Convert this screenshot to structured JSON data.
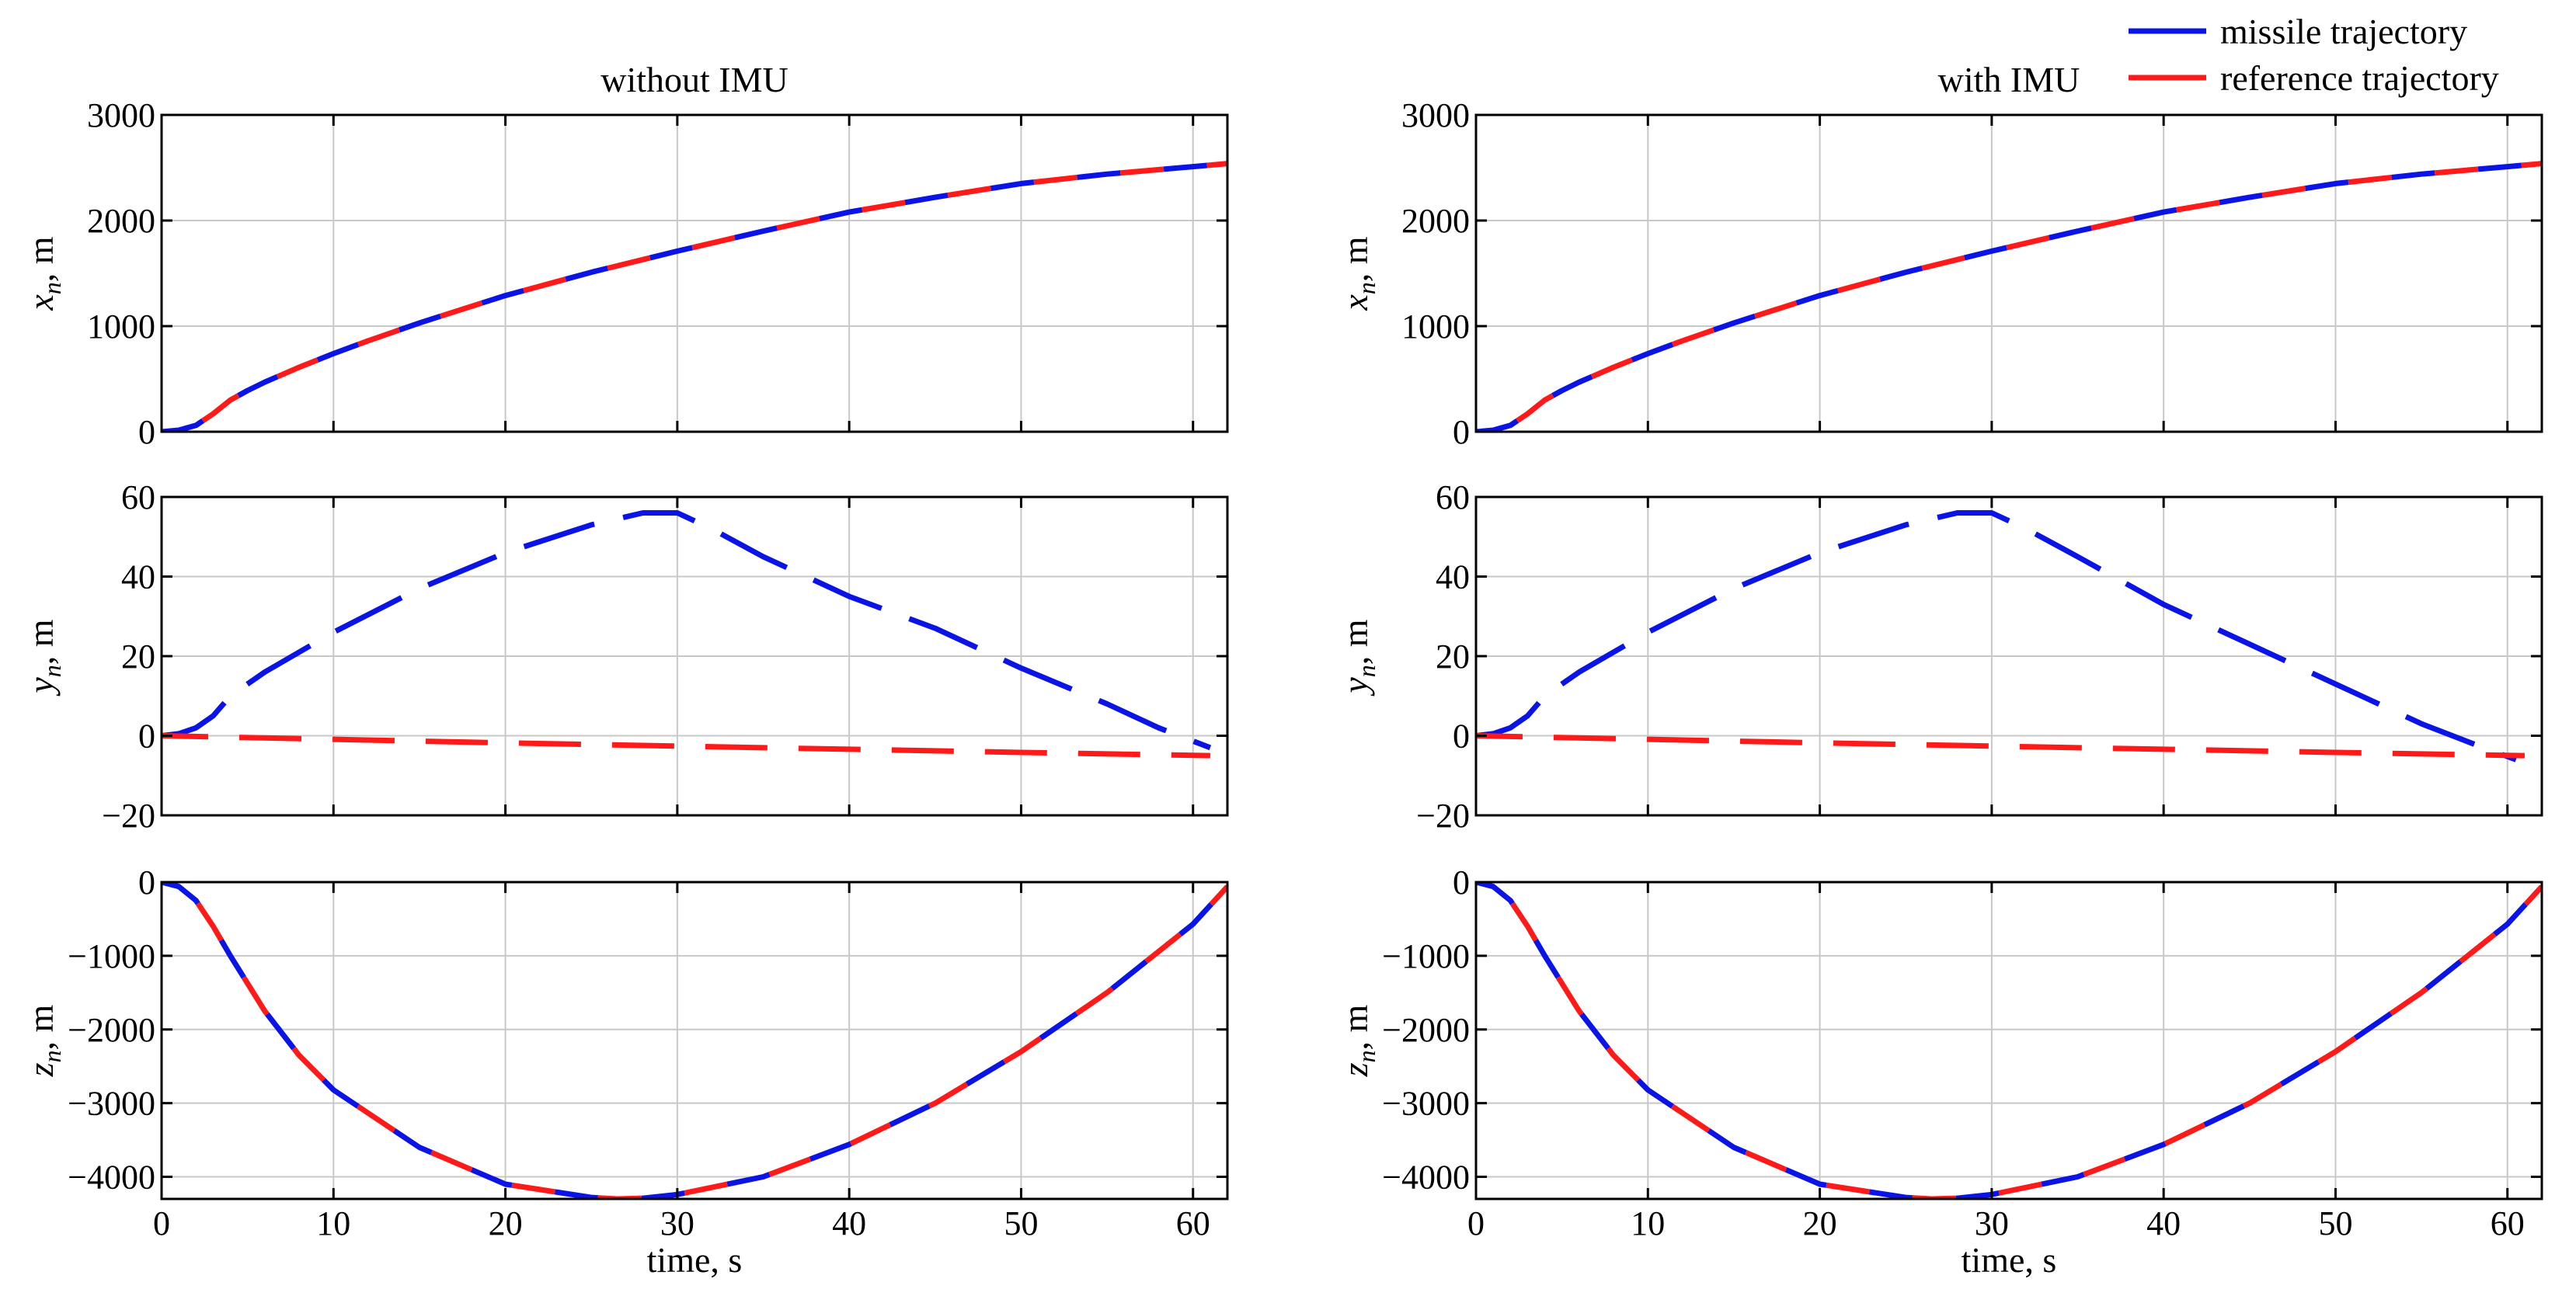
{
  "legend": {
    "position": "top-right",
    "entries": [
      {
        "name": "missile trajectory",
        "color": "#0a14e6"
      },
      {
        "name": "reference trajectory",
        "color": "#ff1a1a"
      }
    ]
  },
  "chart_data": [
    {
      "type": "line",
      "column": "left",
      "row": "x",
      "title": "without IMU",
      "xlabel": "",
      "ylabel": "x_n, m",
      "ylabel_var": "x",
      "ylabel_sub": "n",
      "ylabel_unit": ", m",
      "xlim": [
        0,
        62
      ],
      "ylim": [
        0,
        3000
      ],
      "xticks": [
        0,
        10,
        20,
        30,
        40,
        50,
        60
      ],
      "yticks": [
        0,
        1000,
        2000,
        3000
      ],
      "ytick_labels": [
        "0",
        "1000",
        "2000",
        "3000"
      ],
      "grid": true,
      "show_xtick_labels": false,
      "series": [
        {
          "name": "missile trajectory",
          "style": "blue-dash",
          "x": [
            0,
            1,
            2,
            3,
            4,
            5,
            6,
            8,
            10,
            12,
            15,
            20,
            25,
            30,
            35,
            40,
            45,
            50,
            55,
            60,
            62
          ],
          "y": [
            0,
            15,
            60,
            170,
            300,
            390,
            470,
            610,
            740,
            860,
            1030,
            1290,
            1510,
            1710,
            1900,
            2080,
            2220,
            2350,
            2440,
            2510,
            2540
          ]
        },
        {
          "name": "reference trajectory",
          "style": "red-dash",
          "x": [
            0,
            1,
            2,
            3,
            4,
            5,
            6,
            8,
            10,
            12,
            15,
            20,
            25,
            30,
            35,
            40,
            45,
            50,
            55,
            60,
            62
          ],
          "y": [
            0,
            15,
            60,
            170,
            300,
            390,
            470,
            610,
            740,
            860,
            1030,
            1290,
            1510,
            1710,
            1900,
            2080,
            2220,
            2350,
            2440,
            2510,
            2540
          ]
        }
      ]
    },
    {
      "type": "line",
      "column": "left",
      "row": "y",
      "title": "",
      "xlabel": "",
      "ylabel": "y_n, m",
      "ylabel_var": "y",
      "ylabel_sub": "n",
      "ylabel_unit": ", m",
      "xlim": [
        0,
        62
      ],
      "ylim": [
        -20,
        60
      ],
      "xticks": [
        0,
        10,
        20,
        30,
        40,
        50,
        60
      ],
      "yticks": [
        -20,
        0,
        20,
        40,
        60
      ],
      "ytick_labels": [
        "−20",
        "0",
        "20",
        "40",
        "60"
      ],
      "grid": true,
      "show_xtick_labels": false,
      "series": [
        {
          "name": "missile trajectory",
          "style": "blue-long-dash",
          "x": [
            0,
            1,
            2,
            3,
            4,
            6,
            8,
            10,
            15,
            20,
            25,
            28,
            30,
            32,
            35,
            40,
            45,
            50,
            55,
            58,
            61
          ],
          "y": [
            0,
            0.5,
            2,
            5,
            10,
            16,
            21,
            26,
            37,
            46,
            53,
            56,
            56,
            52,
            45,
            35,
            27,
            17,
            8,
            2,
            -3
          ]
        },
        {
          "name": "reference trajectory",
          "style": "red-long-dash",
          "x": [
            0,
            10,
            20,
            30,
            40,
            50,
            61
          ],
          "y": [
            0,
            -0.9,
            -1.8,
            -2.6,
            -3.4,
            -4.2,
            -5
          ]
        }
      ]
    },
    {
      "type": "line",
      "column": "left",
      "row": "z",
      "title": "",
      "xlabel": "time, s",
      "ylabel": "z_n, m",
      "ylabel_var": "z",
      "ylabel_sub": "n",
      "ylabel_unit": ", m",
      "xlim": [
        0,
        62
      ],
      "ylim": [
        -4300,
        0
      ],
      "xticks": [
        0,
        10,
        20,
        30,
        40,
        50,
        60
      ],
      "yticks": [
        -4000,
        -3000,
        -2000,
        -1000,
        0
      ],
      "ytick_labels": [
        "−4000",
        "−3000",
        "−2000",
        "−1000",
        "0"
      ],
      "grid": true,
      "show_xtick_labels": true,
      "xtick_labels": [
        "0",
        "10",
        "20",
        "30",
        "40",
        "50",
        "60"
      ],
      "series": [
        {
          "name": "missile trajectory",
          "style": "blue-dash",
          "x": [
            0,
            1,
            2,
            3,
            4,
            6,
            8,
            10,
            15,
            20,
            25,
            26.5,
            28,
            30,
            35,
            40,
            45,
            50,
            55,
            60,
            62
          ],
          "y": [
            0,
            -60,
            -250,
            -600,
            -1000,
            -1750,
            -2350,
            -2820,
            -3600,
            -4100,
            -4280,
            -4300,
            -4290,
            -4240,
            -4000,
            -3560,
            -3000,
            -2300,
            -1500,
            -570,
            -60
          ]
        },
        {
          "name": "reference trajectory",
          "style": "red-dash",
          "x": [
            0,
            1,
            2,
            3,
            4,
            6,
            8,
            10,
            15,
            20,
            25,
            26.5,
            28,
            30,
            35,
            40,
            45,
            50,
            55,
            60,
            62
          ],
          "y": [
            0,
            -60,
            -250,
            -600,
            -1000,
            -1750,
            -2350,
            -2820,
            -3600,
            -4100,
            -4280,
            -4300,
            -4290,
            -4240,
            -4000,
            -3560,
            -3000,
            -2300,
            -1500,
            -570,
            -60
          ]
        }
      ]
    },
    {
      "type": "line",
      "column": "right",
      "row": "x",
      "title": "with IMU",
      "xlabel": "",
      "ylabel": "x_n, m",
      "ylabel_var": "x",
      "ylabel_sub": "n",
      "ylabel_unit": ", m",
      "xlim": [
        0,
        62
      ],
      "ylim": [
        0,
        3000
      ],
      "xticks": [
        0,
        10,
        20,
        30,
        40,
        50,
        60
      ],
      "yticks": [
        0,
        1000,
        2000,
        3000
      ],
      "ytick_labels": [
        "0",
        "1000",
        "2000",
        "3000"
      ],
      "grid": true,
      "show_xtick_labels": false,
      "series": [
        {
          "name": "missile trajectory",
          "style": "blue-dash",
          "x": [
            0,
            1,
            2,
            3,
            4,
            5,
            6,
            8,
            10,
            12,
            15,
            20,
            25,
            30,
            35,
            40,
            45,
            50,
            55,
            60,
            62
          ],
          "y": [
            0,
            15,
            60,
            170,
            300,
            390,
            470,
            610,
            740,
            860,
            1030,
            1290,
            1510,
            1710,
            1900,
            2080,
            2220,
            2350,
            2440,
            2510,
            2540
          ]
        },
        {
          "name": "reference trajectory",
          "style": "red-dash",
          "x": [
            0,
            1,
            2,
            3,
            4,
            5,
            6,
            8,
            10,
            12,
            15,
            20,
            25,
            30,
            35,
            40,
            45,
            50,
            55,
            60,
            62
          ],
          "y": [
            0,
            15,
            60,
            170,
            300,
            390,
            470,
            610,
            740,
            860,
            1030,
            1290,
            1510,
            1710,
            1900,
            2080,
            2220,
            2350,
            2440,
            2510,
            2540
          ]
        }
      ]
    },
    {
      "type": "line",
      "column": "right",
      "row": "y",
      "title": "",
      "xlabel": "",
      "ylabel": "y_n, m",
      "ylabel_var": "y",
      "ylabel_sub": "n",
      "ylabel_unit": ", m",
      "xlim": [
        0,
        62
      ],
      "ylim": [
        -20,
        60
      ],
      "xticks": [
        0,
        10,
        20,
        30,
        40,
        50,
        60
      ],
      "yticks": [
        -20,
        0,
        20,
        40,
        60
      ],
      "ytick_labels": [
        "−20",
        "0",
        "20",
        "40",
        "60"
      ],
      "grid": true,
      "show_xtick_labels": false,
      "series": [
        {
          "name": "missile trajectory",
          "style": "blue-long-dash",
          "x": [
            0,
            1,
            2,
            3,
            4,
            6,
            8,
            10,
            15,
            20,
            25,
            28,
            30,
            32,
            35,
            40,
            45,
            50,
            55,
            58,
            60.5
          ],
          "y": [
            0,
            0.5,
            2,
            5,
            10,
            16,
            21,
            26,
            37,
            46,
            53,
            56,
            56,
            52,
            45,
            33,
            23,
            13,
            3,
            -2,
            -6
          ]
        },
        {
          "name": "reference trajectory",
          "style": "red-long-dash",
          "x": [
            0,
            10,
            20,
            30,
            40,
            50,
            61
          ],
          "y": [
            0,
            -0.9,
            -1.8,
            -2.6,
            -3.4,
            -4.2,
            -5
          ]
        }
      ]
    },
    {
      "type": "line",
      "column": "right",
      "row": "z",
      "title": "",
      "xlabel": "time, s",
      "ylabel": "z_n, m",
      "ylabel_var": "z",
      "ylabel_sub": "n",
      "ylabel_unit": ", m",
      "xlim": [
        0,
        62
      ],
      "ylim": [
        -4300,
        0
      ],
      "xticks": [
        0,
        10,
        20,
        30,
        40,
        50,
        60
      ],
      "yticks": [
        -4000,
        -3000,
        -2000,
        -1000,
        0
      ],
      "ytick_labels": [
        "−4000",
        "−3000",
        "−2000",
        "−1000",
        "0"
      ],
      "grid": true,
      "show_xtick_labels": true,
      "xtick_labels": [
        "0",
        "10",
        "20",
        "30",
        "40",
        "50",
        "60"
      ],
      "series": [
        {
          "name": "missile trajectory",
          "style": "blue-dash",
          "x": [
            0,
            1,
            2,
            3,
            4,
            6,
            8,
            10,
            15,
            20,
            25,
            26.5,
            28,
            30,
            35,
            40,
            45,
            50,
            55,
            60,
            62
          ],
          "y": [
            0,
            -60,
            -250,
            -600,
            -1000,
            -1750,
            -2350,
            -2820,
            -3600,
            -4100,
            -4280,
            -4300,
            -4290,
            -4240,
            -4000,
            -3560,
            -3000,
            -2300,
            -1500,
            -570,
            -60
          ]
        },
        {
          "name": "reference trajectory",
          "style": "red-dash",
          "x": [
            0,
            1,
            2,
            3,
            4,
            6,
            8,
            10,
            15,
            20,
            25,
            26.5,
            28,
            30,
            35,
            40,
            45,
            50,
            55,
            60,
            62
          ],
          "y": [
            0,
            -60,
            -250,
            -600,
            -1000,
            -1750,
            -2350,
            -2820,
            -3600,
            -4100,
            -4280,
            -4300,
            -4290,
            -4240,
            -4000,
            -3560,
            -3000,
            -2300,
            -1500,
            -570,
            -60
          ]
        }
      ]
    }
  ]
}
